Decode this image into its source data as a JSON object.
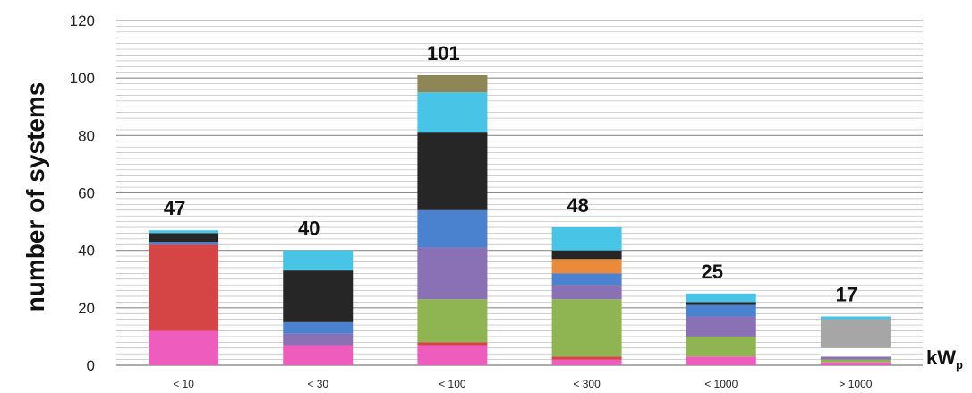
{
  "chart_data": {
    "type": "bar",
    "stacked": true,
    "categories": [
      "< 10",
      "< 30",
      "< 100",
      "< 300",
      "< 1000",
      "> 1000"
    ],
    "totals": [
      47,
      40,
      101,
      48,
      25,
      17
    ],
    "ylabel": "number of systems",
    "unit_label": "kW",
    "unit_subscript": "p",
    "ylim": [
      0,
      120
    ],
    "yticks": [
      0,
      20,
      40,
      60,
      80,
      100,
      120
    ],
    "gridlines": "minor every 2",
    "legend": "none",
    "colors": {
      "pink": "#ee5cbd",
      "red": "#d64545",
      "green": "#8fb552",
      "purple": "#8a70b4",
      "blue": "#4a82d0",
      "black": "#262626",
      "cyan": "#48c4e6",
      "olive": "#8f8657",
      "orange": "#ec8a3c",
      "gray": "#a6a6a6",
      "white": "#ffffff"
    },
    "series": [
      {
        "color": "pink",
        "values": [
          12,
          7,
          7,
          2,
          3,
          1
        ]
      },
      {
        "color": "red",
        "values": [
          30,
          0,
          1,
          1,
          0,
          0
        ]
      },
      {
        "color": "green",
        "values": [
          0,
          0,
          15,
          20,
          7,
          1
        ]
      },
      {
        "color": "purple",
        "values": [
          0,
          4,
          18,
          5,
          7,
          1
        ]
      },
      {
        "color": "blue",
        "values": [
          1,
          4,
          13,
          4,
          4,
          0
        ]
      },
      {
        "color": "orange",
        "values": [
          0,
          0,
          0,
          5,
          0,
          0
        ]
      },
      {
        "color": "white",
        "values": [
          0,
          0,
          0,
          0,
          0,
          3
        ]
      },
      {
        "color": "black",
        "values": [
          3,
          18,
          27,
          3,
          1,
          0
        ]
      },
      {
        "color": "gray",
        "values": [
          0,
          0,
          0,
          0,
          0,
          10
        ]
      },
      {
        "color": "cyan",
        "values": [
          1,
          7,
          14,
          8,
          3,
          1
        ]
      },
      {
        "color": "olive",
        "values": [
          0,
          0,
          6,
          0,
          0,
          0
        ]
      }
    ]
  }
}
